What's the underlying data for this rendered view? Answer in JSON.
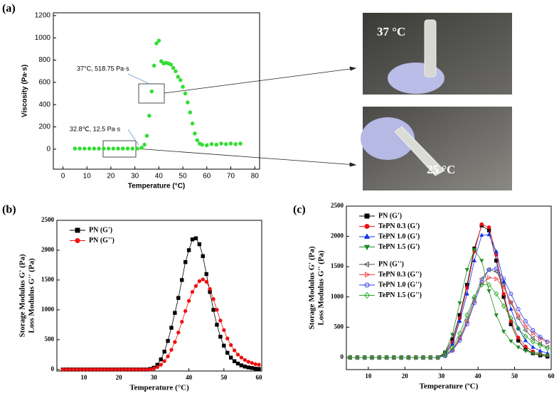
{
  "panels": [
    "(a)",
    "(b)",
    "(c)"
  ],
  "photo_labels": [
    "37 °C",
    "25 °C"
  ],
  "chart_data": [
    {
      "type": "scatter",
      "xlabel": "Temperature (°C)",
      "ylabel": [
        "Viscosity (Pa·s)"
      ],
      "annotations": [
        "37°C, 518.75 Pa·s",
        "32.8℃, 12.5 Pa·s"
      ],
      "xlim": [
        -4,
        82
      ],
      "xticks": [
        0,
        10,
        20,
        30,
        40,
        50,
        60,
        70,
        80
      ],
      "ylim": [
        -180,
        1225
      ],
      "yticks": [
        0,
        200,
        400,
        600,
        800,
        1000,
        1200
      ],
      "x": [
        5,
        7,
        9,
        11,
        13,
        15,
        17,
        19,
        21,
        23,
        25,
        27,
        29,
        31,
        32.8,
        34,
        35,
        36,
        37,
        38,
        39,
        40,
        41,
        42,
        43,
        44,
        45,
        46,
        47,
        48,
        49,
        50,
        51,
        52,
        53,
        54,
        55,
        56,
        57,
        58,
        60,
        62,
        64,
        66,
        68,
        70,
        72,
        74
      ],
      "series": [
        {
          "name": null,
          "color": "#33dd33",
          "marker": "circle",
          "filled": true,
          "values": [
            5,
            5,
            5,
            5,
            5,
            5,
            5,
            5,
            5,
            5,
            5,
            5,
            5,
            5,
            12.5,
            40,
            120,
            300,
            518.75,
            750,
            950,
            975,
            790,
            770,
            775,
            770,
            760,
            730,
            700,
            650,
            620,
            560,
            500,
            420,
            330,
            230,
            140,
            80,
            50,
            40,
            35,
            45,
            40,
            50,
            45,
            50,
            45,
            50
          ]
        }
      ]
    },
    {
      "type": "line",
      "xlabel": "Temperature (°C)",
      "ylabel": [
        "Storage Modulus G' (Pa)",
        "Loss Modulus G'' (Pa)"
      ],
      "legend": "upper left",
      "xlim": [
        2.3,
        60.8
      ],
      "xticks": [
        10,
        20,
        30,
        40,
        50,
        60
      ],
      "ylim": [
        -25,
        2500
      ],
      "yticks": [
        0,
        500,
        1000,
        1500,
        2000,
        2500
      ],
      "x": [
        4,
        5,
        6,
        7,
        8,
        9,
        10,
        11,
        12,
        13,
        14,
        15,
        16,
        17,
        18,
        19,
        20,
        21,
        22,
        23,
        24,
        25,
        26,
        27,
        28,
        29,
        30,
        31,
        32,
        33,
        34,
        35,
        36,
        37,
        38,
        39,
        40,
        41,
        42,
        43,
        44,
        45,
        46,
        47,
        48,
        49,
        50,
        51,
        52,
        53,
        54,
        55,
        56,
        57,
        58,
        59,
        60
      ],
      "series": [
        {
          "name": "PN (G')",
          "color": "#000000",
          "marker": "square",
          "filled": true,
          "values": [
            0,
            0,
            0,
            0,
            0,
            0,
            0,
            0,
            0,
            0,
            0,
            0,
            0,
            0,
            0,
            0,
            0,
            0,
            0,
            0,
            0,
            0,
            0,
            0,
            0,
            10,
            30,
            80,
            170,
            300,
            480,
            700,
            950,
            1200,
            1500,
            1800,
            2000,
            2180,
            2200,
            2100,
            1900,
            1600,
            1300,
            1000,
            750,
            550,
            400,
            280,
            200,
            140,
            100,
            70,
            50,
            35,
            25,
            15,
            10
          ]
        },
        {
          "name": "PN (G'')",
          "color": "#ee1111",
          "marker": "circle",
          "filled": true,
          "values": [
            0,
            0,
            0,
            0,
            0,
            0,
            0,
            0,
            0,
            0,
            0,
            0,
            0,
            0,
            0,
            0,
            0,
            0,
            0,
            0,
            0,
            0,
            0,
            0,
            0,
            0,
            15,
            40,
            80,
            140,
            220,
            330,
            460,
            620,
            800,
            980,
            1150,
            1300,
            1400,
            1480,
            1510,
            1470,
            1350,
            1180,
            1000,
            820,
            660,
            520,
            410,
            320,
            250,
            200,
            160,
            130,
            110,
            90,
            80
          ]
        }
      ]
    },
    {
      "type": "line",
      "xlabel": "Temperature (ºC)",
      "ylabel": [
        "Storage Modulus G' (Pa)",
        "Loss Modulus G'' (Pa)"
      ],
      "legend": "upper left",
      "xlim": [
        4,
        60
      ],
      "xticks": [
        10,
        20,
        30,
        40,
        50,
        60
      ],
      "ylim": [
        -200,
        2500
      ],
      "yticks": [
        0,
        500,
        1000,
        1500,
        2000,
        2500
      ],
      "x": [
        5,
        7,
        9,
        11,
        13,
        15,
        17,
        19,
        21,
        23,
        25,
        27,
        29,
        31,
        33,
        35,
        37,
        39,
        41,
        43,
        45,
        47,
        49,
        51,
        53,
        55,
        57,
        59
      ],
      "series": [
        {
          "name": "PN (G')",
          "color": "#000000",
          "marker": "square",
          "filled": true,
          "values": [
            0,
            0,
            0,
            0,
            0,
            0,
            0,
            0,
            0,
            0,
            0,
            0,
            0,
            80,
            300,
            700,
            1200,
            1800,
            2180,
            2100,
            1600,
            1000,
            550,
            280,
            140,
            70,
            35,
            15
          ]
        },
        {
          "name": "TePN 0.3 (G')",
          "color": "#ee1111",
          "marker": "circle",
          "filled": true,
          "values": [
            0,
            0,
            0,
            0,
            0,
            0,
            0,
            0,
            0,
            0,
            0,
            0,
            0,
            60,
            250,
            650,
            1150,
            1750,
            2200,
            2150,
            1700,
            1050,
            600,
            330,
            180,
            100,
            60,
            40
          ]
        },
        {
          "name": "TePN 1.0 (G')",
          "color": "#1133ee",
          "marker": "triangle-up",
          "filled": true,
          "values": [
            0,
            0,
            0,
            0,
            0,
            0,
            0,
            0,
            0,
            0,
            0,
            0,
            0,
            50,
            220,
            600,
            1050,
            1600,
            2020,
            2030,
            1750,
            1250,
            800,
            480,
            280,
            170,
            110,
            70
          ]
        },
        {
          "name": "TePN 1.5 (G')",
          "color": "#228822",
          "marker": "triangle-down",
          "filled": true,
          "values": [
            0,
            0,
            0,
            0,
            0,
            0,
            0,
            0,
            0,
            0,
            0,
            0,
            0,
            90,
            380,
            900,
            1450,
            1780,
            1600,
            1100,
            700,
            430,
            270,
            170,
            110,
            70,
            50,
            35
          ]
        },
        {
          "name": "PN  (G'')",
          "color": "#555555",
          "marker": "triangle-left",
          "filled": false,
          "values": [
            0,
            0,
            0,
            0,
            0,
            0,
            0,
            0,
            0,
            0,
            0,
            0,
            0,
            30,
            130,
            330,
            620,
            980,
            1300,
            1450,
            1420,
            1200,
            900,
            650,
            450,
            320,
            230,
            170
          ]
        },
        {
          "name": "TePN 0.3 (G'')",
          "color": "#ee4444",
          "marker": "triangle-right",
          "filled": false,
          "values": [
            0,
            0,
            0,
            0,
            0,
            0,
            0,
            0,
            0,
            0,
            0,
            0,
            0,
            30,
            120,
            300,
            580,
            920,
            1220,
            1320,
            1300,
            1150,
            920,
            700,
            520,
            400,
            310,
            250
          ]
        },
        {
          "name": "TePN 1.0 (G'')",
          "color": "#3344ee",
          "marker": "circle",
          "filled": false,
          "values": [
            0,
            0,
            0,
            0,
            0,
            0,
            0,
            0,
            0,
            0,
            0,
            0,
            0,
            25,
            110,
            280,
            550,
            900,
            1250,
            1450,
            1470,
            1300,
            1050,
            800,
            600,
            450,
            340,
            260
          ]
        },
        {
          "name": "TePN 1.5 (G'')",
          "color": "#22aa22",
          "marker": "diamond",
          "filled": false,
          "values": [
            0,
            0,
            0,
            0,
            0,
            0,
            0,
            0,
            0,
            0,
            0,
            0,
            0,
            40,
            160,
            400,
            700,
            1000,
            1200,
            1200,
            1050,
            850,
            650,
            480,
            350,
            260,
            200,
            150
          ]
        }
      ]
    }
  ]
}
